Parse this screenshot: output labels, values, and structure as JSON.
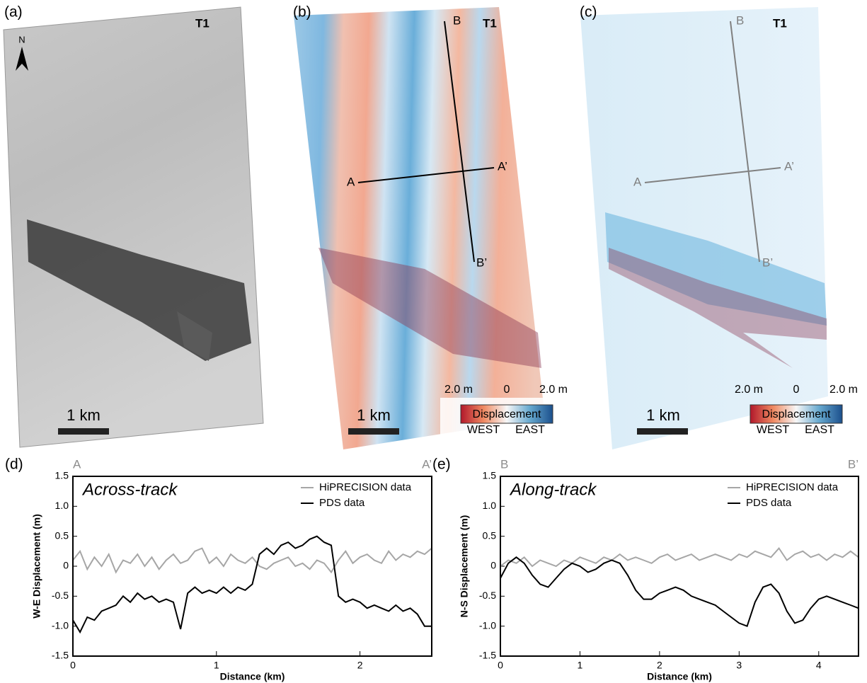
{
  "panels": [
    {
      "label": "(a)",
      "tag": "T1",
      "north": "N",
      "scale": "1 km"
    },
    {
      "label": "(b)",
      "tag": "T1",
      "profile_labels": [
        "B",
        "A",
        "A’",
        "B’"
      ],
      "scale": "1 km",
      "colorbar": {
        "ticks": [
          "2.0 m",
          "0",
          "2.0 m"
        ],
        "title": "Displacement",
        "sides": [
          "WEST",
          "EAST"
        ]
      }
    },
    {
      "label": "(c)",
      "tag": "T1",
      "profile_labels": [
        "B",
        "A",
        "A’",
        "B’"
      ],
      "scale": "1 km",
      "colorbar": {
        "ticks": [
          "2.0 m",
          "0",
          "2.0 m"
        ],
        "title": "Displacement",
        "sides": [
          "WEST",
          "EAST"
        ]
      }
    }
  ],
  "chart_data": [
    {
      "type": "line",
      "panel_label": "(d)",
      "title": "Across-track",
      "start_label": "A",
      "end_label": "A’",
      "x_label": "Distance (km)",
      "y_label": "W-E Displacement (m)",
      "xlim": [
        0,
        2.5
      ],
      "xticks": [
        0,
        1,
        2
      ],
      "ylim": [
        -1.5,
        1.5
      ],
      "yticks": [
        -1.5,
        {
          "value": -1,
          "label": "-1.0"
        },
        -0.5,
        0,
        0.5,
        {
          "value": 1,
          "label": "1.0"
        },
        1.5
      ],
      "legend": "upper right",
      "x": [
        0,
        0.05,
        0.1,
        0.15,
        0.2,
        0.25,
        0.3,
        0.35,
        0.4,
        0.45,
        0.5,
        0.55,
        0.6,
        0.65,
        0.7,
        0.75,
        0.8,
        0.85,
        0.9,
        0.95,
        1,
        1.05,
        1.1,
        1.15,
        1.2,
        1.25,
        1.3,
        1.35,
        1.4,
        1.45,
        1.5,
        1.55,
        1.6,
        1.65,
        1.7,
        1.75,
        1.8,
        1.85,
        1.9,
        1.95,
        2,
        2.05,
        2.1,
        2.15,
        2.2,
        2.25,
        2.3,
        2.35,
        2.4,
        2.45,
        2.5
      ],
      "series": [
        {
          "name": "HiPRECISION data",
          "color": "#a6a6a6",
          "values": [
            0.1,
            0.25,
            -0.05,
            0.15,
            0,
            0.2,
            -0.1,
            0.1,
            0.05,
            0.2,
            0,
            0.15,
            -0.05,
            0.1,
            0.2,
            0.05,
            0.1,
            0.25,
            0.3,
            0.05,
            0.15,
            0,
            0.2,
            0.1,
            0.05,
            0.15,
            0,
            -0.05,
            0.05,
            0.1,
            0.15,
            0,
            0.05,
            -0.05,
            0.1,
            0.05,
            -0.1,
            0.1,
            0.25,
            0.05,
            0.15,
            0.2,
            0.1,
            0.05,
            0.25,
            0.1,
            0.2,
            0.15,
            0.25,
            0.2,
            0.3
          ]
        },
        {
          "name": "PDS data",
          "color": "#000000",
          "values": [
            -0.9,
            -1.1,
            -0.85,
            -0.9,
            -0.75,
            -0.7,
            -0.65,
            -0.5,
            -0.6,
            -0.45,
            -0.55,
            -0.5,
            -0.6,
            -0.55,
            -0.6,
            -1.05,
            -0.45,
            -0.35,
            -0.45,
            -0.4,
            -0.45,
            -0.35,
            -0.45,
            -0.35,
            -0.4,
            -0.3,
            0.2,
            0.3,
            0.2,
            0.35,
            0.4,
            0.3,
            0.35,
            0.45,
            0.5,
            0.4,
            0.35,
            -0.5,
            -0.6,
            -0.55,
            -0.6,
            -0.7,
            -0.65,
            -0.7,
            -0.75,
            -0.65,
            -0.75,
            -0.7,
            -0.8,
            -1,
            -1
          ]
        }
      ]
    },
    {
      "type": "line",
      "panel_label": "(e)",
      "title": "Along-track",
      "start_label": "B",
      "end_label": "B’",
      "x_label": "Distance (km)",
      "y_label": "N-S Displacement (m)",
      "xlim": [
        0,
        4.5
      ],
      "xticks": [
        0,
        1,
        2,
        3,
        4
      ],
      "ylim": [
        -1.5,
        1.5
      ],
      "yticks": [
        -1.5,
        {
          "value": -1,
          "label": "-1.0"
        },
        -0.5,
        0,
        0.5,
        {
          "value": 1,
          "label": "1.0"
        },
        1.5
      ],
      "legend": "upper right",
      "x": [
        0,
        0.1,
        0.2,
        0.3,
        0.4,
        0.5,
        0.6,
        0.7,
        0.8,
        0.9,
        1,
        1.1,
        1.2,
        1.3,
        1.4,
        1.5,
        1.6,
        1.7,
        1.8,
        1.9,
        2,
        2.1,
        2.2,
        2.3,
        2.4,
        2.5,
        2.6,
        2.7,
        2.8,
        2.9,
        3,
        3.1,
        3.2,
        3.3,
        3.4,
        3.5,
        3.6,
        3.7,
        3.8,
        3.9,
        4,
        4.1,
        4.2,
        4.3,
        4.4,
        4.5
      ],
      "series": [
        {
          "name": "HiPRECISION data",
          "color": "#a6a6a6",
          "values": [
            0,
            0.1,
            0.05,
            0.15,
            0,
            0.1,
            0.05,
            0,
            0.1,
            0.05,
            0.15,
            0.1,
            0.05,
            0.15,
            0.1,
            0.2,
            0.1,
            0.15,
            0.1,
            0.05,
            0.15,
            0.2,
            0.1,
            0.15,
            0.2,
            0.1,
            0.15,
            0.2,
            0.15,
            0.1,
            0.2,
            0.15,
            0.25,
            0.2,
            0.15,
            0.3,
            0.1,
            0.2,
            0.25,
            0.15,
            0.2,
            0.1,
            0.2,
            0.15,
            0.25,
            0.15
          ]
        },
        {
          "name": "PDS data",
          "color": "#000000",
          "values": [
            -0.2,
            0.05,
            0.15,
            0.05,
            -0.15,
            -0.3,
            -0.35,
            -0.2,
            -0.05,
            0.05,
            0,
            -0.1,
            -0.05,
            0.05,
            0.1,
            0.05,
            -0.15,
            -0.4,
            -0.55,
            -0.55,
            -0.45,
            -0.4,
            -0.35,
            -0.4,
            -0.5,
            -0.55,
            -0.6,
            -0.65,
            -0.75,
            -0.85,
            -0.95,
            -1,
            -0.6,
            -0.35,
            -0.3,
            -0.45,
            -0.75,
            -0.95,
            -0.9,
            -0.7,
            -0.55,
            -0.5,
            -0.55,
            -0.6,
            -0.65,
            -0.7
          ]
        }
      ]
    }
  ]
}
